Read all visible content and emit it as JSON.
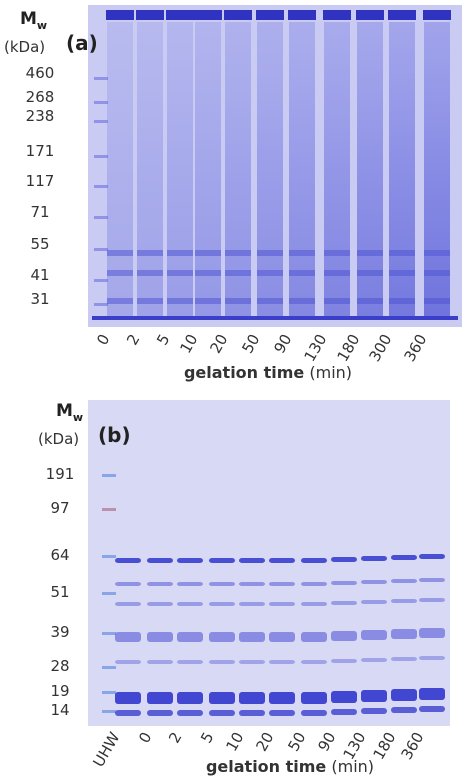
{
  "panel_a": {
    "label": "(a)",
    "mw_symbol": "M",
    "mw_subscript": "w",
    "unit": "(kDa)",
    "markers": [
      460,
      268,
      238,
      171,
      117,
      71,
      55,
      41,
      31
    ],
    "lanes": [
      "0",
      "2",
      "5",
      "10",
      "20",
      "50",
      "90",
      "130",
      "180",
      "300",
      "360"
    ],
    "axis_title": {
      "name": "gelation time",
      "unit": "(min)"
    }
  },
  "panel_b": {
    "label": "(b)",
    "mw_symbol": "M",
    "mw_subscript": "w",
    "unit": "(kDa)",
    "markers": [
      191,
      97,
      64,
      51,
      39,
      28,
      19,
      14
    ],
    "lanes": [
      "UHW",
      "0",
      "2",
      "5",
      "10",
      "20",
      "50",
      "90",
      "130",
      "180",
      "360"
    ],
    "axis_title": {
      "name": "gelation time",
      "unit": "(min)"
    }
  }
}
